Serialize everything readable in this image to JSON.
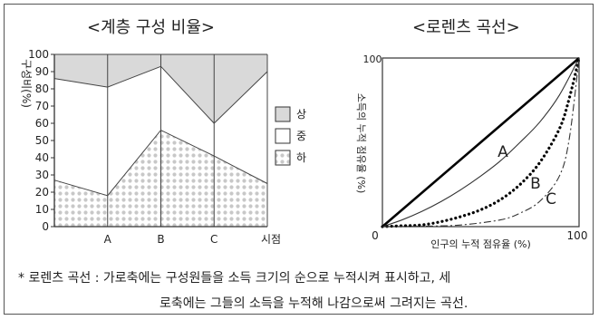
{
  "chart_data": [
    {
      "type": "area",
      "title": "<계층 구성 비율>",
      "ylabel": "구성비(%)",
      "xlabel": "시점",
      "categories": [
        "",
        "A",
        "B",
        "C",
        ""
      ],
      "y_ticks": [
        "0",
        "10",
        "20",
        "30",
        "40",
        "50",
        "60",
        "70",
        "80",
        "90",
        "100"
      ],
      "ylim": [
        0,
        100
      ],
      "stacked": true,
      "legend_position": "right",
      "series": [
        {
          "name": "하",
          "boundary": [
            27,
            18,
            56,
            41,
            25
          ],
          "fill": "dotted",
          "color": "#d8d8d8"
        },
        {
          "name": "중",
          "boundary": [
            86,
            81,
            93,
            60,
            90
          ],
          "fill": "white",
          "color": "#ffffff"
        },
        {
          "name": "상",
          "boundary": [
            100,
            100,
            100,
            100,
            100
          ],
          "fill": "solid",
          "color": "#d9d9d9"
        }
      ],
      "legend": [
        {
          "label": "상",
          "fill": "solid"
        },
        {
          "label": "중",
          "fill": "white"
        },
        {
          "label": "하",
          "fill": "dotted"
        }
      ]
    },
    {
      "type": "line",
      "title": "<로렌츠 곡선>",
      "xlabel": "인구의 누적 점유율 (%)",
      "ylabel": "소득의 누적 점유율 (%)",
      "xlim": [
        0,
        100
      ],
      "ylim": [
        0,
        100
      ],
      "origin_label": "0",
      "x_end_label": "100",
      "y_top_label": "100",
      "series": [
        {
          "name": "",
          "style": "thick-solid",
          "x": [
            0,
            100
          ],
          "y": [
            0,
            100
          ]
        },
        {
          "name": "A",
          "style": "thin-solid",
          "x": [
            0,
            10,
            20,
            30,
            40,
            50,
            60,
            70,
            80,
            90,
            100
          ],
          "y": [
            0,
            4,
            9,
            15,
            22,
            30,
            39,
            50,
            62,
            78,
            100
          ]
        },
        {
          "name": "B",
          "style": "dotted-bold",
          "x": [
            0,
            10,
            20,
            30,
            40,
            50,
            60,
            70,
            80,
            90,
            95,
            100
          ],
          "y": [
            0,
            0.5,
            1,
            3,
            6,
            10,
            16,
            25,
            38,
            58,
            76,
            100
          ]
        },
        {
          "name": "C",
          "style": "dash-dot",
          "x": [
            0,
            20,
            40,
            60,
            70,
            80,
            90,
            95,
            100
          ],
          "y": [
            0,
            0.2,
            1,
            4,
            8,
            15,
            30,
            52,
            100
          ]
        }
      ],
      "curve_labels": [
        "A",
        "B",
        "C"
      ]
    }
  ],
  "note": {
    "line1": "* 로렌츠 곡선 : 가로축에는 구성원들을 소득 크기의 순으로 누적시켜 표시하고, 세",
    "line2": "로축에는 그들의 소득을 누적해 나감으로써 그려지는 곡선."
  }
}
